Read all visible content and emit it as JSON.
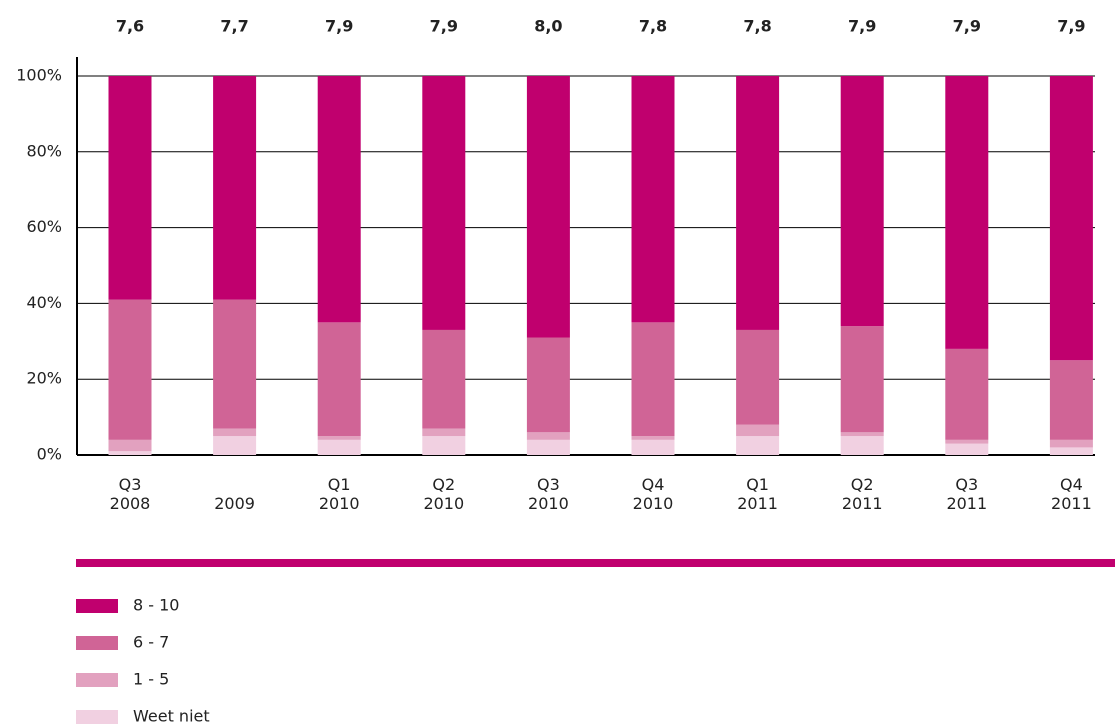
{
  "chart_data": {
    "type": "stacked_bar",
    "categories": [
      "Q3\n2008",
      "2009",
      "Q1\n2010",
      "Q2\n2010",
      "Q3\n2010",
      "Q4\n2010",
      "Q1\n2011",
      "Q2\n2011",
      "Q3\n2011",
      "Q4\n2011"
    ],
    "series": [
      {
        "name": "Weet niet",
        "color": "#f1d0e1",
        "values": [
          1,
          5,
          4,
          5,
          4,
          4,
          5,
          5,
          3,
          2
        ]
      },
      {
        "name": "1 - 5",
        "color": "#e2a1bf",
        "values": [
          3,
          2,
          1,
          2,
          2,
          1,
          3,
          1,
          1,
          2
        ]
      },
      {
        "name": "6 - 7",
        "color": "#d06496",
        "values": [
          37,
          34,
          30,
          26,
          25,
          30,
          25,
          28,
          24,
          21
        ]
      },
      {
        "name": "8 - 10",
        "color": "#c0006e",
        "values": [
          59,
          59,
          65,
          67,
          69,
          65,
          67,
          66,
          72,
          75
        ]
      }
    ],
    "scores": {
      "values": [
        7.6,
        7.7,
        7.9,
        7.9,
        8.0,
        7.8,
        7.8,
        7.9,
        7.9,
        7.9
      ],
      "value_labels": [
        "7,6",
        "7,7",
        "7,9",
        "7,9",
        "8,0",
        "7,8",
        "7,8",
        "7,9",
        "7,9",
        "7,9"
      ]
    },
    "ylim": [
      0,
      100
    ],
    "yticks": [
      {
        "value": 0,
        "label": "0%"
      },
      {
        "value": 20,
        "label": "20%"
      },
      {
        "value": 40,
        "label": "40%"
      },
      {
        "value": 60,
        "label": "60%"
      },
      {
        "value": 80,
        "label": "80%"
      },
      {
        "value": 100,
        "label": "100%"
      }
    ],
    "grid": true
  }
}
